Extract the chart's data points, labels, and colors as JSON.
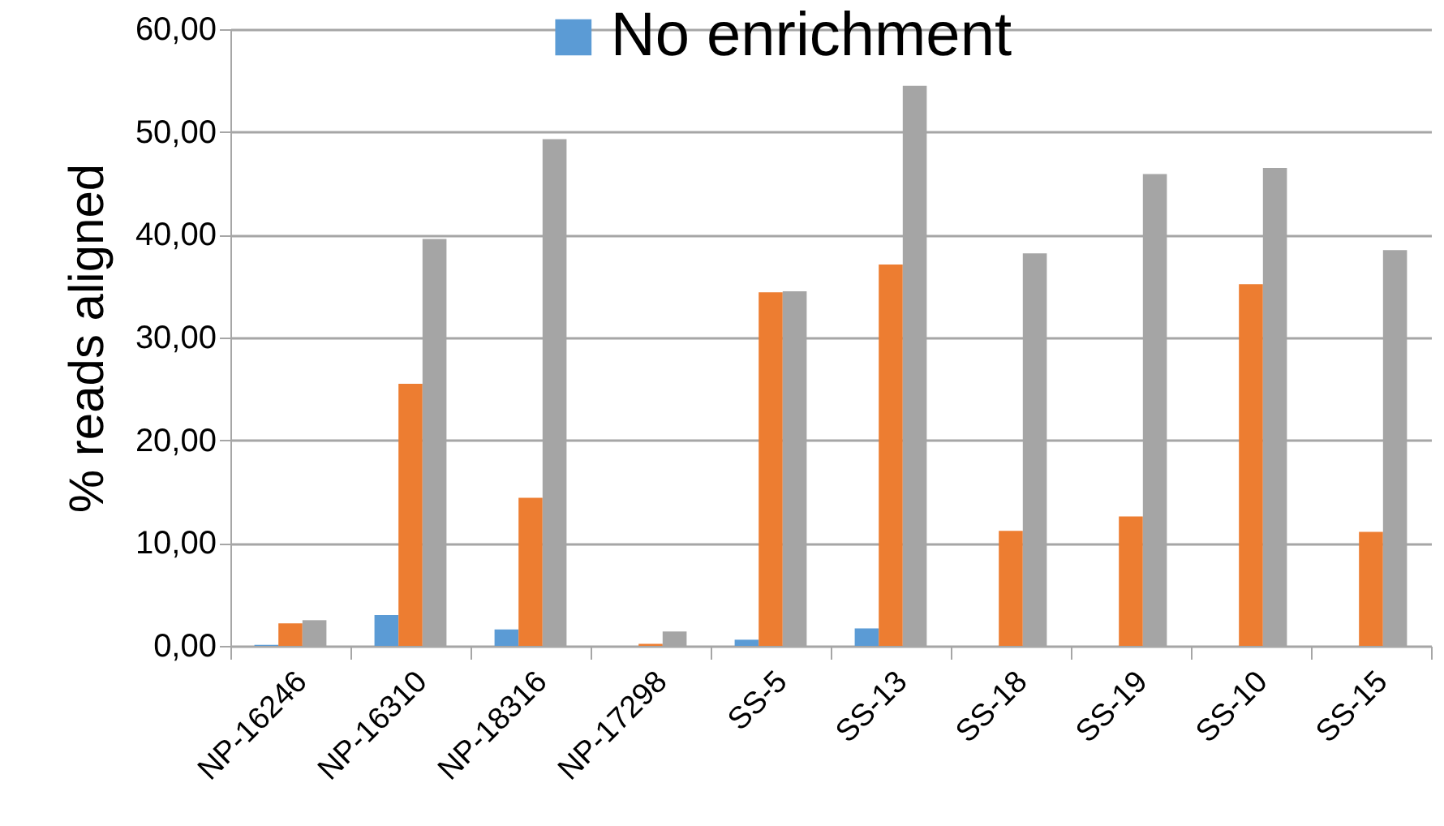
{
  "chart_data": {
    "type": "bar",
    "ylabel": "% reads aligned",
    "categories": [
      "NP-16246",
      "NP-16310",
      "NP-18316",
      "NP-17298",
      "SS-5",
      "SS-13",
      "SS-18",
      "SS-19",
      "SS-10",
      "SS-15"
    ],
    "series": [
      {
        "name": "No enrichment",
        "color": "#5b9bd5",
        "values": [
          0.1,
          3.0,
          1.6,
          0,
          0.6,
          1.7,
          0,
          0,
          0,
          0
        ]
      },
      {
        "color": "#ed7d31",
        "values": [
          2.2,
          25.5,
          14.4,
          0.2,
          34.4,
          37.1,
          11.2,
          12.6,
          35.2,
          11.1
        ]
      },
      {
        "color": "#a5a5a5",
        "values": [
          2.5,
          39.6,
          49.3,
          1.4,
          34.5,
          54.5,
          38.2,
          45.9,
          46.5,
          38.5
        ]
      }
    ],
    "ylim": [
      0,
      60
    ],
    "yticks": [
      {
        "value": 0,
        "label": "0,00"
      },
      {
        "value": 10,
        "label": "10,00"
      },
      {
        "value": 20,
        "label": "20,00"
      },
      {
        "value": 30,
        "label": "30,00"
      },
      {
        "value": 40,
        "label": "40,00"
      },
      {
        "value": 50,
        "label": "50,00"
      },
      {
        "value": 60,
        "label": "60,00"
      }
    ],
    "grid": "y",
    "legend": "top"
  }
}
